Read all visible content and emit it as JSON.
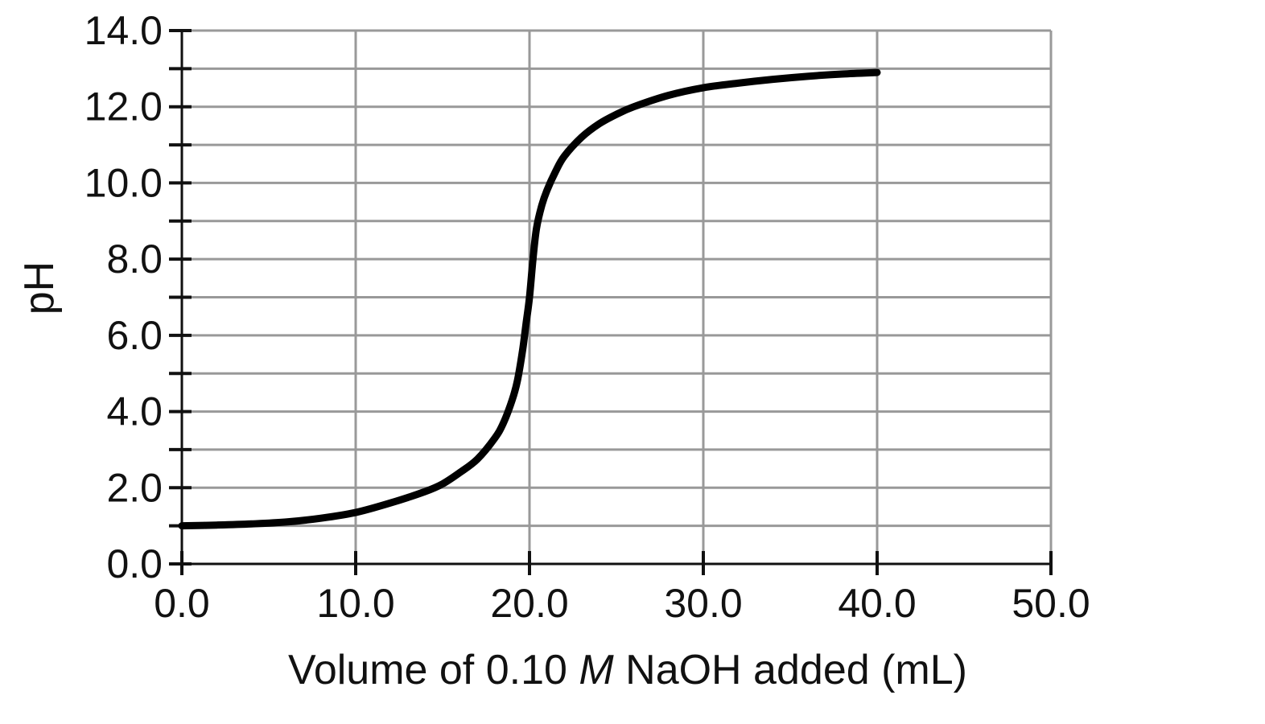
{
  "chart_data": {
    "type": "line",
    "title": "",
    "xlabel": {
      "prefix": "Volume of 0.10 ",
      "italic": "M",
      "suffix": " NaOH added (mL)"
    },
    "ylabel": "pH",
    "xlim": [
      0,
      50
    ],
    "ylim": [
      0,
      14
    ],
    "x_ticks": [
      0,
      10,
      20,
      30,
      40,
      50
    ],
    "x_tick_labels": [
      "0.0",
      "10.0",
      "20.0",
      "30.0",
      "40.0",
      "50.0"
    ],
    "y_ticks": [
      0,
      2,
      4,
      6,
      8,
      10,
      12,
      14
    ],
    "y_tick_labels": [
      "0.0",
      "2.0",
      "4.0",
      "6.0",
      "8.0",
      "10.0",
      "12.0",
      "14.0"
    ],
    "y_minor_step": 1,
    "x_grid_step": 10,
    "y_grid_step": 1,
    "grid": true,
    "legend": "none",
    "series": [
      {
        "color": "#000000",
        "x": [
          0,
          2,
          4,
          6,
          8,
          10,
          12,
          14,
          15,
          16,
          17,
          18,
          18.5,
          19,
          19.3,
          19.6,
          19.8,
          20,
          20.2,
          20.4,
          20.7,
          21,
          21.5,
          22,
          23,
          24,
          25,
          26,
          28,
          30,
          32,
          34,
          36,
          38,
          40
        ],
        "y": [
          1.0,
          1.02,
          1.05,
          1.1,
          1.2,
          1.35,
          1.6,
          1.9,
          2.1,
          2.4,
          2.75,
          3.3,
          3.7,
          4.3,
          4.8,
          5.6,
          6.3,
          7.0,
          8.0,
          8.8,
          9.4,
          9.8,
          10.3,
          10.7,
          11.2,
          11.55,
          11.8,
          12.0,
          12.3,
          12.5,
          12.62,
          12.72,
          12.8,
          12.86,
          12.9
        ]
      }
    ]
  }
}
